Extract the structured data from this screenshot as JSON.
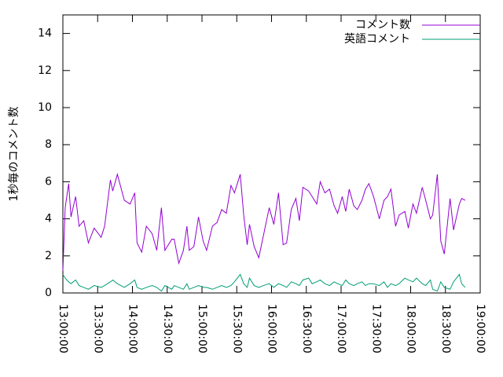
{
  "chart_data": {
    "type": "line",
    "ylabel": "1秒毎のコメント数",
    "x": [
      "13:00:00",
      "13:02:00",
      "13:05:00",
      "13:07:00",
      "13:11:00",
      "13:14:00",
      "13:18:00",
      "13:22:00",
      "13:27:00",
      "13:33:00",
      "13:36:00",
      "13:41:00",
      "13:43:00",
      "13:47:00",
      "13:53:00",
      "13:58:00",
      "14:02:00",
      "14:04:00",
      "14:08:00",
      "14:12:00",
      "14:17:00",
      "14:21:00",
      "14:25:00",
      "14:28:00",
      "14:34:00",
      "14:36:00",
      "14:40:00",
      "14:44:00",
      "14:47:00",
      "14:49:00",
      "14:53:00",
      "14:57:00",
      "15:01:00",
      "15:04:00",
      "15:09:00",
      "15:13:00",
      "15:17:00",
      "15:21:00",
      "15:25:00",
      "15:28:00",
      "15:33:00",
      "15:36:00",
      "15:39:00",
      "15:41:00",
      "15:45:00",
      "15:49:00",
      "15:53:00",
      "15:58:00",
      "16:02:00",
      "16:06:00",
      "16:10:00",
      "16:13:00",
      "16:17:00",
      "16:21:00",
      "16:24:00",
      "16:27:00",
      "16:32:00",
      "16:35:00",
      "16:39:00",
      "16:42:00",
      "16:46:00",
      "16:50:00",
      "16:54:00",
      "16:57:00",
      "17:01:00",
      "17:04:00",
      "17:07:00",
      "17:11:00",
      "17:14:00",
      "17:18:00",
      "17:21:00",
      "17:24:00",
      "17:28:00",
      "17:33:00",
      "17:37:00",
      "17:40:00",
      "17:43:00",
      "17:47:00",
      "17:50:00",
      "17:55:00",
      "17:58:00",
      "18:02:00",
      "18:05:00",
      "18:10:00",
      "18:13:00",
      "18:17:00",
      "18:19:00",
      "18:23:00",
      "18:26:00",
      "18:29:00",
      "18:34:00",
      "18:37:00",
      "18:42:00",
      "18:44:00",
      "18:47:00"
    ],
    "series": [
      {
        "name": "コメント数",
        "color": "#9400d3",
        "values": [
          1.2,
          4.6,
          5.9,
          4.1,
          5.2,
          3.6,
          3.9,
          2.7,
          3.5,
          3.0,
          3.6,
          6.1,
          5.5,
          6.4,
          5.0,
          4.8,
          5.4,
          2.7,
          2.2,
          3.6,
          3.2,
          2.3,
          4.6,
          2.3,
          2.9,
          2.9,
          1.6,
          2.3,
          3.6,
          2.3,
          2.5,
          4.1,
          2.8,
          2.3,
          3.6,
          3.8,
          4.5,
          4.3,
          5.8,
          5.4,
          6.4,
          4.2,
          2.6,
          3.7,
          2.5,
          1.9,
          3.1,
          4.6,
          3.7,
          5.4,
          2.6,
          2.7,
          4.5,
          5.1,
          3.9,
          5.7,
          5.5,
          5.2,
          4.8,
          6.0,
          5.4,
          5.6,
          4.7,
          4.3,
          5.2,
          4.4,
          5.6,
          4.7,
          4.5,
          5.0,
          5.6,
          5.9,
          5.2,
          4.0,
          5.0,
          5.2,
          5.6,
          3.6,
          4.2,
          4.4,
          3.5,
          4.8,
          4.3,
          5.7,
          5.0,
          4.0,
          4.2,
          6.4,
          2.8,
          2.1,
          5.1,
          3.4,
          4.8,
          5.1,
          5.0
        ]
      },
      {
        "name": "英語コメント",
        "color": "#009e73",
        "values": [
          1.0,
          0.8,
          0.6,
          0.5,
          0.7,
          0.4,
          0.3,
          0.2,
          0.4,
          0.3,
          0.4,
          0.6,
          0.7,
          0.5,
          0.3,
          0.5,
          0.7,
          0.3,
          0.2,
          0.3,
          0.4,
          0.3,
          0.1,
          0.4,
          0.2,
          0.4,
          0.3,
          0.2,
          0.5,
          0.2,
          0.3,
          0.4,
          0.3,
          0.3,
          0.2,
          0.3,
          0.4,
          0.3,
          0.4,
          0.6,
          1.0,
          0.5,
          0.3,
          0.8,
          0.4,
          0.3,
          0.4,
          0.5,
          0.3,
          0.5,
          0.4,
          0.3,
          0.6,
          0.5,
          0.4,
          0.7,
          0.8,
          0.5,
          0.6,
          0.7,
          0.5,
          0.4,
          0.6,
          0.5,
          0.4,
          0.7,
          0.5,
          0.4,
          0.5,
          0.6,
          0.4,
          0.5,
          0.5,
          0.4,
          0.6,
          0.3,
          0.5,
          0.4,
          0.5,
          0.8,
          0.7,
          0.6,
          0.8,
          0.5,
          0.4,
          0.7,
          0.2,
          0.1,
          0.6,
          0.3,
          0.2,
          0.6,
          1.0,
          0.5,
          0.3
        ]
      }
    ],
    "xlim": [
      "13:00:00",
      "19:00:00"
    ],
    "xticks": [
      "13:00:00",
      "13:30:00",
      "14:00:00",
      "14:30:00",
      "15:00:00",
      "15:30:00",
      "16:00:00",
      "16:30:00",
      "17:00:00",
      "17:30:00",
      "18:00:00",
      "18:30:00",
      "19:00:00"
    ],
    "ylim": [
      0,
      15
    ],
    "yticks": [
      0,
      2,
      4,
      6,
      8,
      10,
      12,
      14
    ],
    "legend": "top-right"
  }
}
